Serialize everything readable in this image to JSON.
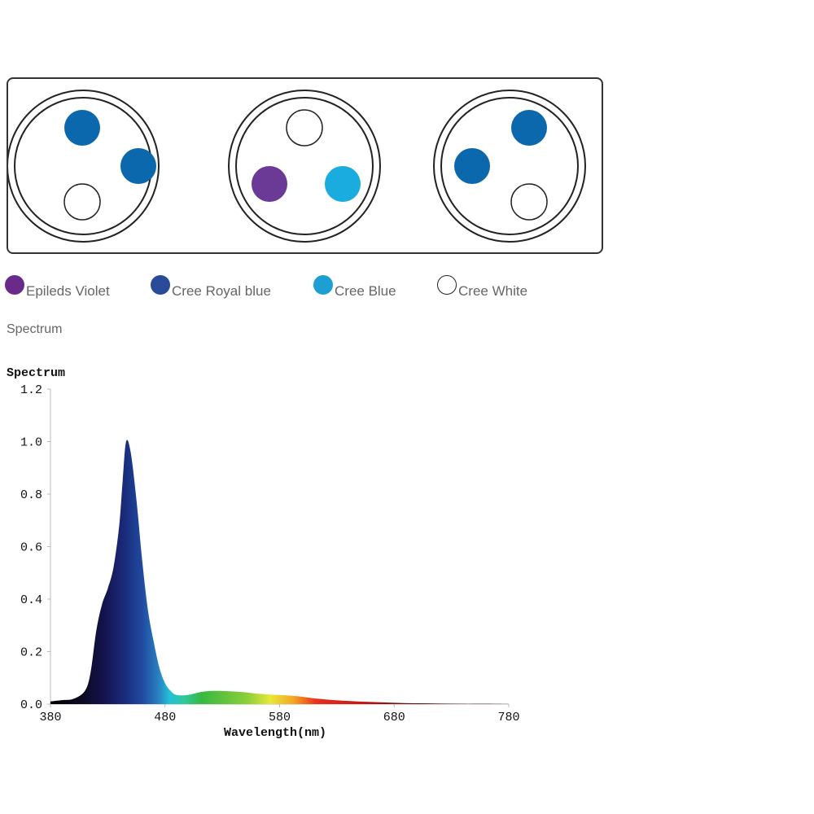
{
  "fixture": {
    "colors": {
      "violet": "#6a3a96",
      "royal_blue": "#0c68ad",
      "blue": "#1aabdf",
      "white": "#ffffff"
    },
    "pods": [
      {
        "leds": [
          "royal_blue",
          "royal_blue",
          "white"
        ]
      },
      {
        "leds": [
          "white",
          "violet",
          "blue"
        ]
      },
      {
        "leds": [
          "royal_blue",
          "royal_blue",
          "white"
        ]
      }
    ]
  },
  "legend": [
    {
      "label": "Epileds Violet",
      "color": "#6a2a8a"
    },
    {
      "label": "Cree Royal blue",
      "color": "#2a4a9a"
    },
    {
      "label": "Cree Blue",
      "color": "#1e9fd4"
    },
    {
      "label": "Cree White",
      "color": "#ffffff"
    }
  ],
  "section_label": "Spectrum",
  "chart_data": {
    "type": "area",
    "title": "Spectrum",
    "xlabel": "Wavelength(nm)",
    "ylabel": "",
    "xlim": [
      380,
      780
    ],
    "ylim": [
      0,
      1.2
    ],
    "x_ticks": [
      380,
      480,
      580,
      680,
      780
    ],
    "y_ticks": [
      0.0,
      0.2,
      0.4,
      0.6,
      0.8,
      1.0,
      1.2
    ],
    "x_tick_labels": [
      "380",
      "480",
      "580",
      "680",
      "780"
    ],
    "y_tick_labels": [
      "0.0",
      "0.2",
      "0.4",
      "0.6",
      "0.8",
      "1.0",
      "1.2"
    ],
    "grid": false,
    "series": [
      {
        "name": "Spectrum",
        "x": [
          380,
          390,
          400,
          410,
          415,
          420,
          425,
          430,
          435,
          440,
          443,
          446,
          450,
          455,
          460,
          465,
          470,
          475,
          480,
          485,
          490,
          500,
          510,
          520,
          530,
          540,
          550,
          560,
          570,
          580,
          590,
          600,
          610,
          620,
          640,
          660,
          680,
          700,
          720,
          740,
          760,
          780
        ],
        "values": [
          0.01,
          0.015,
          0.02,
          0.05,
          0.12,
          0.28,
          0.38,
          0.44,
          0.52,
          0.68,
          0.85,
          1.0,
          0.96,
          0.78,
          0.55,
          0.36,
          0.24,
          0.14,
          0.08,
          0.05,
          0.035,
          0.035,
          0.045,
          0.05,
          0.05,
          0.048,
          0.045,
          0.04,
          0.037,
          0.035,
          0.032,
          0.028,
          0.022,
          0.018,
          0.012,
          0.008,
          0.005,
          0.003,
          0.002,
          0.001,
          0.001,
          0.0
        ]
      }
    ]
  }
}
